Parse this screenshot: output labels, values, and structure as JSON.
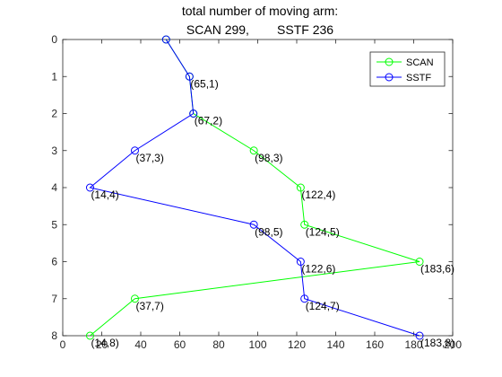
{
  "chart_data": {
    "type": "line",
    "title": [
      "total number of moving arm:",
      "SCAN 299,        SSTF 236"
    ],
    "xlabel": "",
    "ylabel": "",
    "xlim": [
      0,
      200
    ],
    "ylim": [
      0,
      8
    ],
    "y_reversed": true,
    "grid": false,
    "legend_position": "top-right",
    "xticks": [
      0,
      20,
      40,
      60,
      80,
      100,
      120,
      140,
      160,
      180,
      200
    ],
    "yticks": [
      0,
      1,
      2,
      3,
      4,
      5,
      6,
      7,
      8
    ],
    "series": [
      {
        "name": "SCAN",
        "color": "#00ff00",
        "marker": "circle",
        "x": [
          53,
          65,
          67,
          98,
          122,
          124,
          183,
          37,
          14
        ],
        "y": [
          0,
          1,
          2,
          3,
          4,
          5,
          6,
          7,
          8
        ]
      },
      {
        "name": "SSTF",
        "color": "#0000ff",
        "marker": "circle",
        "x": [
          53,
          65,
          67,
          37,
          14,
          98,
          122,
          124,
          183
        ],
        "y": [
          0,
          1,
          2,
          3,
          4,
          5,
          6,
          7,
          8
        ]
      }
    ],
    "point_labels": [
      {
        "text": "(65,1)",
        "x": 65,
        "y": 1
      },
      {
        "text": "(67,2)",
        "x": 67,
        "y": 2
      },
      {
        "text": "(37,3)",
        "x": 37,
        "y": 3
      },
      {
        "text": "(98,3)",
        "x": 98,
        "y": 3
      },
      {
        "text": "(14,4)",
        "x": 14,
        "y": 4
      },
      {
        "text": "(122,4)",
        "x": 122,
        "y": 4
      },
      {
        "text": "(98,5)",
        "x": 98,
        "y": 5
      },
      {
        "text": "(124,5)",
        "x": 124,
        "y": 5
      },
      {
        "text": "(122,6)",
        "x": 122,
        "y": 6
      },
      {
        "text": "(183,6)",
        "x": 183,
        "y": 6
      },
      {
        "text": "(37,7)",
        "x": 37,
        "y": 7
      },
      {
        "text": "(124,7)",
        "x": 124,
        "y": 7
      },
      {
        "text": "(14,8)",
        "x": 14,
        "y": 8
      },
      {
        "text": "(183,8)",
        "x": 183,
        "y": 8
      }
    ]
  }
}
